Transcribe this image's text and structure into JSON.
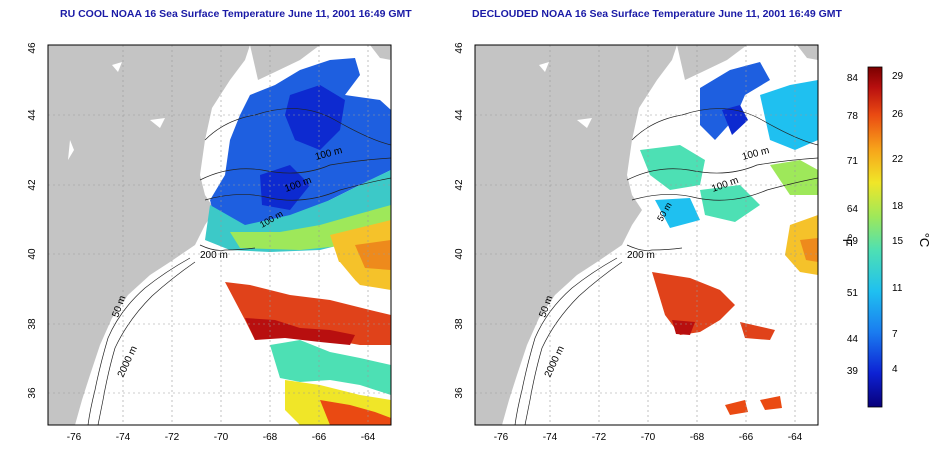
{
  "panels": [
    {
      "title": "RU COOL NOAA 16 Sea Surface Temperature June 11, 2001 16:49 GMT",
      "contour_labels": [
        "100 m",
        "100 m",
        "100 m",
        "200 m",
        "50 m",
        "2000 m"
      ]
    },
    {
      "title": "DECLOUDED NOAA 16 Sea Surface Temperature June 11, 2001 16:49 GMT",
      "contour_labels": [
        "100 m",
        "100 m",
        "50 m",
        "200 m",
        "50 m",
        "2000 m"
      ]
    }
  ],
  "axes": {
    "longitude_ticks": [
      "-76",
      "-74",
      "-72",
      "-70",
      "-68",
      "-66",
      "-64"
    ],
    "latitude_ticks": [
      "36",
      "38",
      "40",
      "42",
      "44",
      "46"
    ]
  },
  "colorbar": {
    "fahrenheit_unit": "°F",
    "celsius_unit": "°C",
    "fahrenheit_ticks": [
      "84",
      "78",
      "71",
      "64",
      "59",
      "51",
      "44",
      "39"
    ],
    "celsius_ticks": [
      "29",
      "26",
      "22",
      "18",
      "15",
      "11",
      "7",
      "4"
    ],
    "colors": [
      "#08007a",
      "#0d22d4",
      "#1a7cf0",
      "#1fc0f0",
      "#4de0b4",
      "#9ee85a",
      "#f0e628",
      "#f7a21a",
      "#ea4a12",
      "#b80f0f",
      "#7a0000"
    ]
  },
  "colors": {
    "land": "#c4c4c4",
    "ocean": "#ffffff",
    "title": "#1a1aa6"
  }
}
